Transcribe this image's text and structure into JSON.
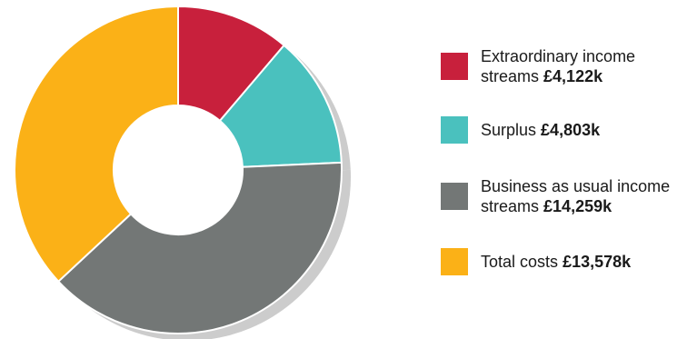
{
  "chart_data": {
    "type": "pie",
    "style": "donut",
    "slices": [
      {
        "label": "Extraordinary income streams",
        "value_text": "£4,122k",
        "value": 4122,
        "color": "#c8203c"
      },
      {
        "label": "Surplus",
        "value_text": "£4,803k",
        "value": 4803,
        "color": "#4ac1be"
      },
      {
        "label": "Business as usual income streams",
        "value_text": "£14,259k",
        "value": 14259,
        "color": "#737776"
      },
      {
        "label": "Total costs",
        "value_text": "£13,578k",
        "value": 13578,
        "color": "#fbb117"
      }
    ],
    "legend_position": "right",
    "shadow_color": "#cccccc"
  }
}
